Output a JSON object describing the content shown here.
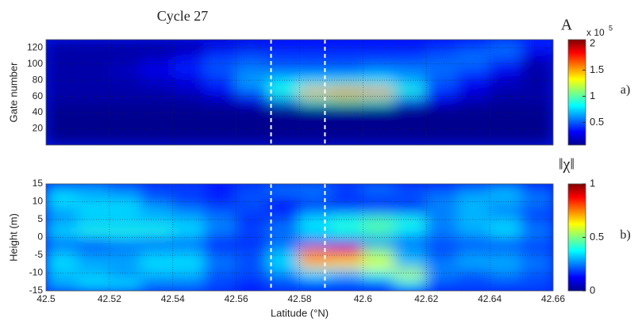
{
  "chart_data": [
    {
      "type": "heatmap",
      "title": "Cycle 27",
      "panel_label": "a)",
      "ylabel": "Gate number",
      "x": [
        42.505,
        42.515,
        42.525,
        42.535,
        42.545,
        42.555,
        42.565,
        42.575,
        42.585,
        42.595,
        42.605,
        42.615,
        42.625,
        42.635,
        42.645,
        42.655
      ],
      "y": [
        125,
        115,
        105,
        95,
        85,
        75,
        65,
        55,
        45,
        35,
        25,
        15,
        5
      ],
      "values": [
        [
          0.15,
          0.15,
          0.15,
          0.15,
          0.15,
          0.2,
          0.25,
          0.3,
          0.3,
          0.3,
          0.3,
          0.3,
          0.35,
          0.4,
          0.5,
          0.4
        ],
        [
          0.15,
          0.15,
          0.15,
          0.15,
          0.2,
          0.35,
          0.4,
          0.4,
          0.4,
          0.4,
          0.4,
          0.4,
          0.45,
          0.5,
          0.55,
          0.3
        ],
        [
          0.15,
          0.15,
          0.15,
          0.2,
          0.3,
          0.45,
          0.5,
          0.45,
          0.45,
          0.45,
          0.45,
          0.45,
          0.5,
          0.55,
          0.45,
          0.2
        ],
        [
          0.15,
          0.15,
          0.2,
          0.3,
          0.4,
          0.5,
          0.55,
          0.5,
          0.5,
          0.5,
          0.55,
          0.55,
          0.55,
          0.5,
          0.35,
          0.15
        ],
        [
          0.15,
          0.15,
          0.2,
          0.25,
          0.3,
          0.45,
          0.6,
          0.6,
          0.6,
          0.6,
          0.65,
          0.6,
          0.5,
          0.4,
          0.25,
          0.15
        ],
        [
          0.15,
          0.15,
          0.15,
          0.2,
          0.25,
          0.4,
          0.65,
          0.8,
          0.85,
          0.9,
          0.85,
          0.7,
          0.5,
          0.3,
          0.2,
          0.15
        ],
        [
          0.15,
          0.15,
          0.15,
          0.15,
          0.2,
          0.3,
          0.5,
          0.9,
          1.6,
          1.8,
          1.7,
          0.9,
          0.4,
          0.25,
          0.15,
          0.15
        ],
        [
          0.15,
          0.15,
          0.15,
          0.15,
          0.15,
          0.2,
          0.3,
          0.6,
          0.9,
          1,
          0.9,
          0.5,
          0.3,
          0.2,
          0.15,
          0.15
        ],
        [
          0.1,
          0.1,
          0.1,
          0.1,
          0.1,
          0.1,
          0.1,
          0.1,
          0.1,
          0.1,
          0.1,
          0.1,
          0.1,
          0.1,
          0.1,
          0.1
        ],
        [
          0.1,
          0.1,
          0.1,
          0.1,
          0.1,
          0.1,
          0.1,
          0.1,
          0.1,
          0.1,
          0.1,
          0.1,
          0.1,
          0.1,
          0.1,
          0.1
        ],
        [
          0.1,
          0.1,
          0.1,
          0.1,
          0.1,
          0.1,
          0.1,
          0.1,
          0.1,
          0.1,
          0.1,
          0.1,
          0.1,
          0.1,
          0.1,
          0.1
        ],
        [
          0.1,
          0.1,
          0.1,
          0.1,
          0.1,
          0.1,
          0.1,
          0.1,
          0.1,
          0.1,
          0.1,
          0.1,
          0.1,
          0.1,
          0.1,
          0.1
        ],
        [
          0.1,
          0.1,
          0.1,
          0.1,
          0.1,
          0.1,
          0.1,
          0.1,
          0.1,
          0.1,
          0.1,
          0.1,
          0.1,
          0.1,
          0.1,
          0.1
        ]
      ],
      "xlim": [
        42.5,
        42.66
      ],
      "ylim": [
        0,
        130
      ],
      "xticks": [
        42.5,
        42.52,
        42.54,
        42.56,
        42.58,
        42.6,
        42.62,
        42.64,
        42.66
      ],
      "xticklabels": false,
      "yticks": [
        20,
        40,
        60,
        80,
        100,
        120
      ],
      "grid": true,
      "markers": [
        42.571,
        42.588
      ],
      "colormap": "jet",
      "colorbar_label": "A",
      "colorbar_scale": "x 10",
      "colorbar_exponent": "5",
      "clim": [
        0.07,
        2.08
      ],
      "cticks": [
        0.5,
        1,
        1.5,
        2
      ]
    },
    {
      "type": "heatmap",
      "panel_label": "b)",
      "ylabel": "Height (m)",
      "xlabel": "Latitude (°N)",
      "x": [
        42.505,
        42.515,
        42.525,
        42.535,
        42.545,
        42.555,
        42.565,
        42.575,
        42.585,
        42.595,
        42.605,
        42.615,
        42.625,
        42.635,
        42.645,
        42.655
      ],
      "y": [
        13.5,
        10.5,
        7.5,
        4.5,
        1.5,
        -1.5,
        -4.5,
        -7.5,
        -10.5,
        -13.5
      ],
      "values": [
        [
          0.3,
          0.3,
          0.25,
          0.2,
          0.2,
          0.15,
          0.2,
          0.25,
          0.25,
          0.2,
          0.25,
          0.2,
          0.2,
          0.25,
          0.3,
          0.2
        ],
        [
          0.35,
          0.3,
          0.3,
          0.2,
          0.15,
          0.15,
          0.2,
          0.15,
          0.2,
          0.15,
          0.15,
          0.2,
          0.25,
          0.3,
          0.3,
          0.25
        ],
        [
          0.3,
          0.35,
          0.35,
          0.3,
          0.25,
          0.2,
          0.2,
          0.15,
          0.2,
          0.2,
          0.2,
          0.15,
          0.25,
          0.3,
          0.25,
          0.2
        ],
        [
          0.25,
          0.3,
          0.3,
          0.3,
          0.3,
          0.25,
          0.15,
          0.2,
          0.35,
          0.4,
          0.45,
          0.4,
          0.25,
          0.3,
          0.3,
          0.2
        ],
        [
          0.35,
          0.4,
          0.4,
          0.4,
          0.35,
          0.25,
          0.2,
          0.25,
          0.35,
          0.4,
          0.45,
          0.35,
          0.25,
          0.3,
          0.35,
          0.25
        ],
        [
          0.2,
          0.2,
          0.25,
          0.2,
          0.2,
          0.15,
          0.15,
          0.2,
          0.2,
          0.2,
          0.25,
          0.2,
          0.2,
          0.2,
          0.2,
          0.2
        ],
        [
          0.3,
          0.25,
          0.25,
          0.3,
          0.3,
          0.2,
          0.2,
          0.3,
          0.75,
          0.85,
          0.5,
          0.3,
          0.2,
          0.25,
          0.25,
          0.2
        ],
        [
          0.35,
          0.3,
          0.3,
          0.35,
          0.35,
          0.25,
          0.2,
          0.35,
          0.7,
          0.65,
          0.6,
          0.3,
          0.25,
          0.3,
          0.3,
          0.25
        ],
        [
          0.3,
          0.3,
          0.25,
          0.3,
          0.3,
          0.2,
          0.2,
          0.25,
          0.35,
          0.3,
          0.4,
          0.55,
          0.25,
          0.2,
          0.25,
          0.2
        ],
        [
          0.3,
          0.35,
          0.35,
          0.25,
          0.25,
          0.2,
          0.15,
          0.2,
          0.2,
          0.2,
          0.2,
          0.35,
          0.2,
          0.2,
          0.2,
          0.2
        ]
      ],
      "xlim": [
        42.5,
        42.66
      ],
      "ylim": [
        -15,
        15
      ],
      "xticks": [
        42.5,
        42.52,
        42.54,
        42.56,
        42.58,
        42.6,
        42.62,
        42.64,
        42.66
      ],
      "xticklabels": true,
      "yticks": [
        -15,
        -10,
        -5,
        0,
        5,
        10,
        15
      ],
      "grid": true,
      "markers": [
        42.571,
        42.588
      ],
      "colormap": "jet",
      "colorbar_label": "‖χ‖",
      "clim": [
        0,
        1
      ],
      "cticks": [
        0,
        0.5,
        1
      ]
    }
  ]
}
